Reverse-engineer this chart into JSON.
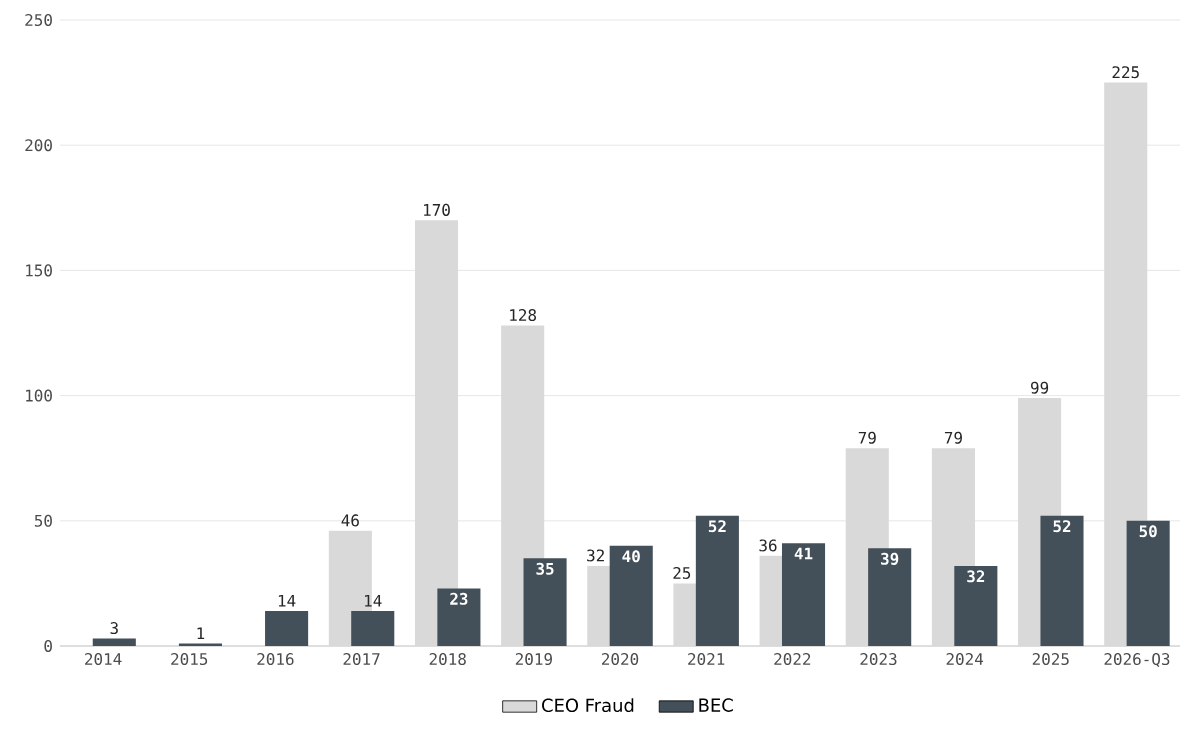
{
  "chart_data": {
    "type": "bar",
    "categories": [
      "2014",
      "2015",
      "2016",
      "2017",
      "2018",
      "2019",
      "2020",
      "2021",
      "2022",
      "2023",
      "2024",
      "2025",
      "2026-Q3"
    ],
    "series": [
      {
        "name": "CEO Fraud",
        "color": "#d9d9d9",
        "values": [
          null,
          null,
          null,
          46,
          170,
          128,
          32,
          25,
          36,
          79,
          79,
          99,
          225
        ]
      },
      {
        "name": "BEC",
        "color": "#434f59",
        "values": [
          3,
          1,
          14,
          14,
          23,
          35,
          40,
          52,
          41,
          39,
          32,
          52,
          50
        ]
      }
    ],
    "ylim": [
      0,
      250
    ],
    "yticks": [
      0,
      50,
      100,
      150,
      200,
      250
    ],
    "grid": "y",
    "legend": "bottom",
    "data_labels": true
  }
}
